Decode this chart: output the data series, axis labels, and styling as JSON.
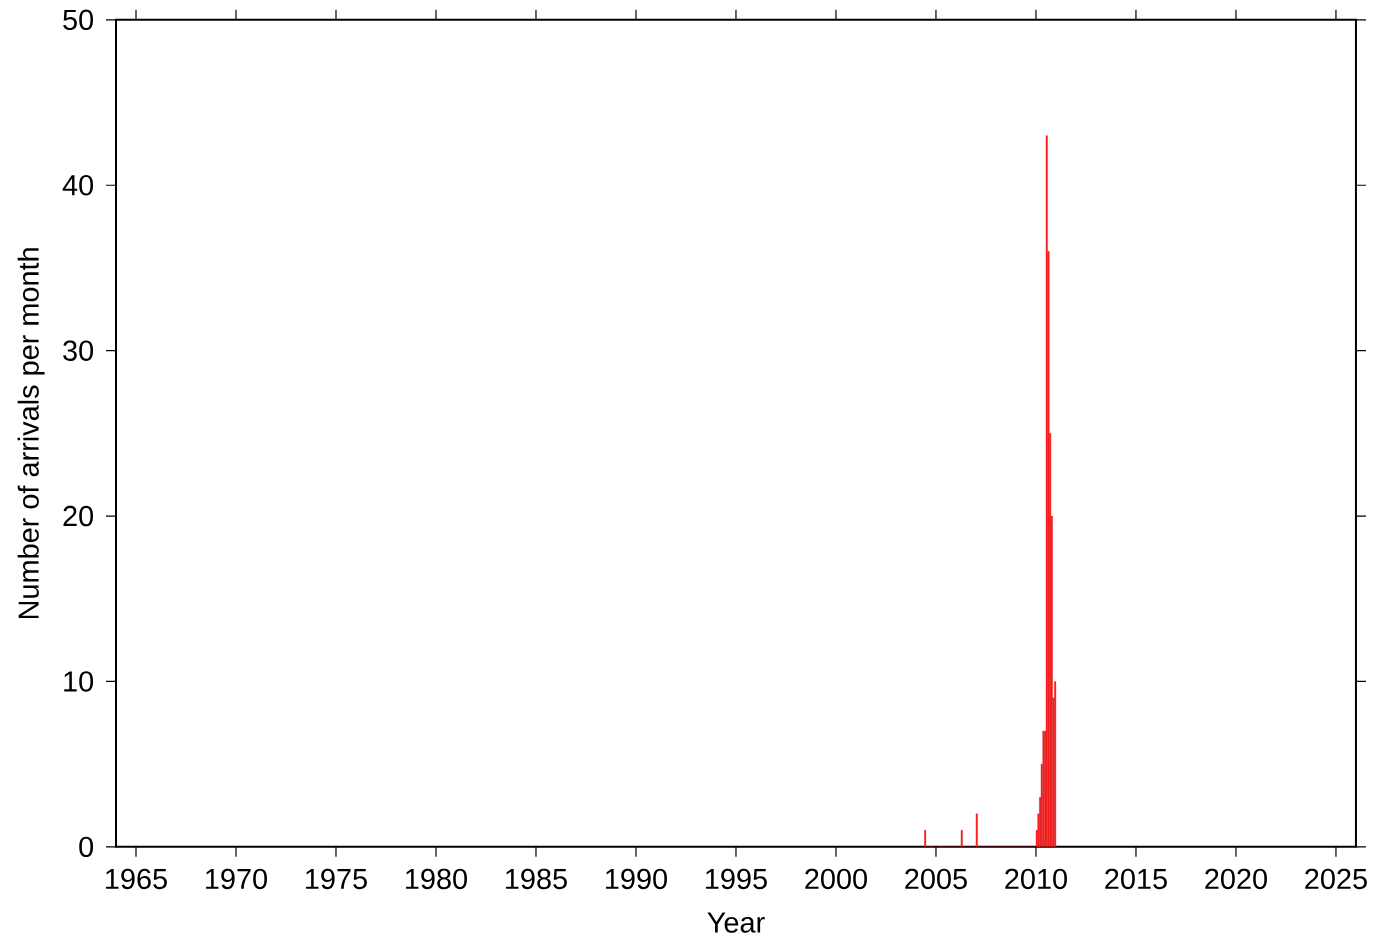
{
  "chart_data": {
    "type": "histogram",
    "xlabel": "Year",
    "ylabel": "Number of arrivals per month",
    "bins": [
      2004.417,
      2004.5,
      2006.25,
      2006.333,
      2007,
      2007.083,
      2010,
      2010.083,
      2010.167,
      2010.25,
      2010.333,
      2010.417,
      2010.5,
      2010.583,
      2010.667,
      2010.75,
      2010.833,
      2010.917,
      2011
    ],
    "values": [
      1,
      0,
      1,
      0,
      2,
      0,
      1,
      2,
      3,
      5,
      7,
      7,
      43,
      36,
      25,
      20,
      9,
      10
    ],
    "color": "#ff2020",
    "xlim": [
      1964,
      2026
    ],
    "ylim": [
      0,
      50
    ],
    "xticks": [
      1965,
      1970,
      1975,
      1980,
      1985,
      1990,
      1995,
      2000,
      2005,
      2010,
      2015,
      2020,
      2025
    ],
    "yticks": [
      0,
      10,
      20,
      30,
      40,
      50
    ]
  }
}
